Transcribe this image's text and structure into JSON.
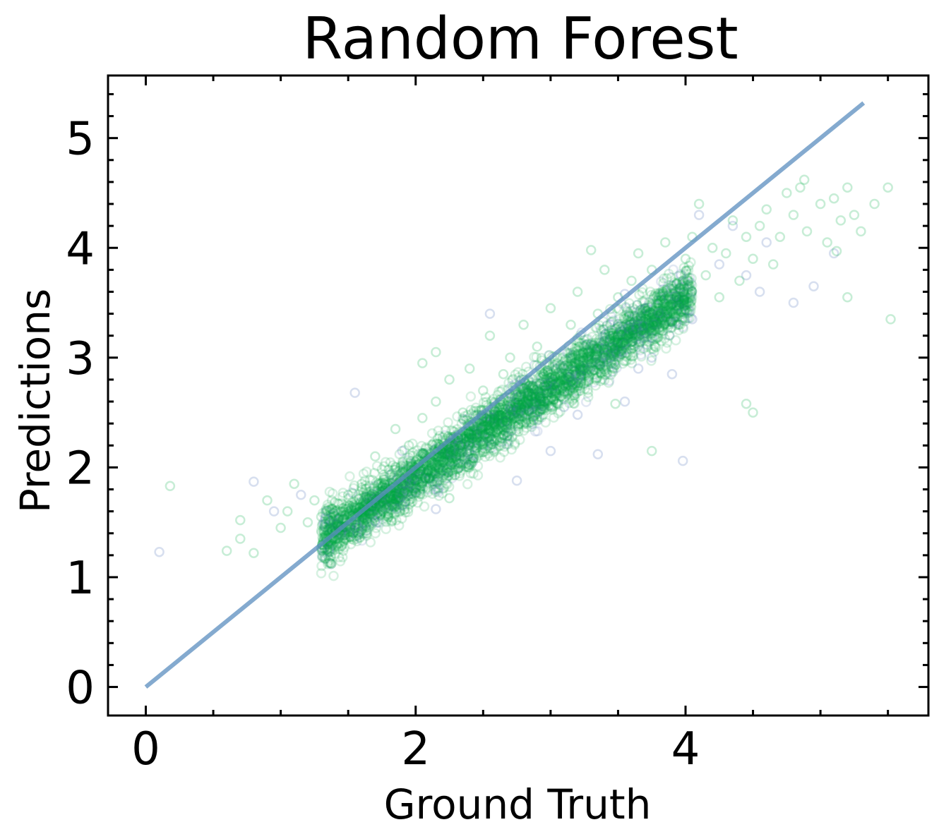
{
  "chart_data": {
    "type": "scatter",
    "title": "Random Forest",
    "xlabel": "Ground Truth",
    "ylabel": "Predictions",
    "xlim": [
      -0.28,
      5.8
    ],
    "ylim": [
      -0.26,
      5.57
    ],
    "xticks": [
      0,
      2,
      4
    ],
    "yticks": [
      0,
      1,
      2,
      3,
      4,
      5
    ],
    "grid": false,
    "identity_line": {
      "x": [
        0,
        5.32
      ],
      "y": [
        0,
        5.32
      ],
      "color": "#5b8dbf"
    },
    "series": [
      {
        "color": "#4a6fb5",
        "marker": "hollow-circle",
        "points": [
          [
            0.1,
            1.23
          ],
          [
            0.8,
            1.87
          ],
          [
            0.95,
            1.6
          ],
          [
            1.15,
            1.75
          ],
          [
            1.55,
            2.68
          ],
          [
            1.9,
            2.15
          ],
          [
            2.15,
            1.62
          ],
          [
            2.3,
            2.25
          ],
          [
            2.55,
            3.4
          ],
          [
            2.75,
            1.88
          ],
          [
            3.0,
            2.15
          ],
          [
            3.1,
            2.55
          ],
          [
            3.2,
            2.48
          ],
          [
            3.35,
            2.12
          ],
          [
            3.55,
            2.6
          ],
          [
            3.55,
            3.58
          ],
          [
            3.75,
            3.0
          ],
          [
            3.9,
            2.85
          ],
          [
            3.98,
            2.06
          ],
          [
            4.05,
            3.35
          ],
          [
            4.1,
            4.3
          ],
          [
            4.25,
            3.85
          ],
          [
            4.45,
            3.75
          ],
          [
            4.55,
            3.6
          ],
          [
            4.6,
            4.05
          ],
          [
            4.8,
            3.5
          ],
          [
            4.95,
            3.65
          ],
          [
            5.1,
            3.95
          ],
          [
            4.35,
            4.2
          ],
          [
            3.65,
            2.9
          ]
        ]
      },
      {
        "color": "#00ab44",
        "marker": "hollow-circle",
        "points": [
          [
            0.18,
            1.83
          ],
          [
            0.6,
            1.24
          ],
          [
            0.7,
            1.52
          ],
          [
            0.7,
            1.35
          ],
          [
            0.8,
            1.22
          ],
          [
            0.9,
            1.7
          ],
          [
            1.0,
            1.45
          ],
          [
            1.05,
            1.6
          ],
          [
            1.1,
            1.85
          ],
          [
            1.2,
            1.5
          ],
          [
            1.25,
            1.7
          ],
          [
            1.3,
            1.55
          ],
          [
            1.4,
            1.68
          ],
          [
            1.45,
            1.6
          ],
          [
            1.5,
            1.75
          ],
          [
            1.55,
            1.5
          ],
          [
            1.6,
            1.85
          ],
          [
            1.65,
            1.72
          ],
          [
            1.7,
            2.1
          ],
          [
            1.72,
            1.55
          ],
          [
            1.8,
            1.98
          ],
          [
            1.85,
            2.35
          ],
          [
            1.9,
            1.82
          ],
          [
            1.95,
            2.2
          ],
          [
            2.0,
            2.05
          ],
          [
            2.05,
            2.45
          ],
          [
            2.1,
            1.9
          ],
          [
            2.15,
            2.6
          ],
          [
            2.2,
            2.25
          ],
          [
            2.25,
            2.8
          ],
          [
            2.3,
            2.1
          ],
          [
            2.35,
            2.5
          ],
          [
            2.4,
            2.9
          ],
          [
            2.45,
            2.3
          ],
          [
            2.5,
            2.7
          ],
          [
            2.55,
            3.2
          ],
          [
            2.6,
            2.45
          ],
          [
            2.65,
            2.85
          ],
          [
            2.7,
            3.0
          ],
          [
            2.75,
            2.55
          ],
          [
            2.8,
            3.3
          ],
          [
            2.85,
            2.75
          ],
          [
            2.9,
            3.1
          ],
          [
            2.95,
            2.85
          ],
          [
            3.0,
            3.45
          ],
          [
            3.05,
            3.0
          ],
          [
            3.1,
            2.75
          ],
          [
            3.15,
            3.3
          ],
          [
            3.2,
            3.6
          ],
          [
            3.25,
            3.1
          ],
          [
            3.3,
            2.95
          ],
          [
            3.35,
            3.4
          ],
          [
            3.4,
            3.8
          ],
          [
            3.45,
            3.25
          ],
          [
            3.5,
            3.55
          ],
          [
            3.55,
            3.1
          ],
          [
            3.6,
            3.7
          ],
          [
            3.65,
            3.95
          ],
          [
            3.7,
            3.45
          ],
          [
            3.75,
            3.8
          ],
          [
            3.8,
            3.55
          ],
          [
            3.85,
            4.05
          ],
          [
            3.9,
            3.65
          ],
          [
            3.95,
            3.3
          ],
          [
            4.0,
            3.9
          ],
          [
            4.05,
            4.1
          ],
          [
            4.1,
            4.4
          ],
          [
            4.15,
            3.75
          ],
          [
            4.2,
            4.0
          ],
          [
            4.25,
            3.55
          ],
          [
            4.3,
            3.95
          ],
          [
            4.35,
            4.25
          ],
          [
            4.4,
            3.7
          ],
          [
            4.45,
            4.1
          ],
          [
            4.5,
            3.9
          ],
          [
            4.55,
            4.2
          ],
          [
            4.6,
            4.35
          ],
          [
            4.65,
            3.85
          ],
          [
            4.7,
            4.1
          ],
          [
            4.75,
            4.5
          ],
          [
            4.8,
            4.3
          ],
          [
            4.85,
            4.55
          ],
          [
            4.9,
            4.15
          ],
          [
            5.0,
            4.4
          ],
          [
            5.05,
            4.05
          ],
          [
            5.1,
            4.45
          ],
          [
            5.15,
            4.25
          ],
          [
            5.2,
            4.55
          ],
          [
            5.25,
            4.3
          ],
          [
            5.3,
            4.15
          ],
          [
            5.4,
            4.4
          ],
          [
            5.5,
            4.55
          ],
          [
            5.52,
            3.35
          ],
          [
            5.2,
            3.55
          ],
          [
            4.5,
            2.5
          ],
          [
            4.45,
            2.58
          ],
          [
            3.75,
            2.15
          ],
          [
            2.05,
            2.95
          ],
          [
            1.85,
            1.98
          ],
          [
            2.25,
            1.72
          ],
          [
            4.88,
            4.62
          ],
          [
            5.12,
            3.97
          ],
          [
            3.3,
            3.98
          ],
          [
            2.15,
            3.05
          ],
          [
            3.48,
            2.58
          ]
        ]
      }
    ]
  }
}
